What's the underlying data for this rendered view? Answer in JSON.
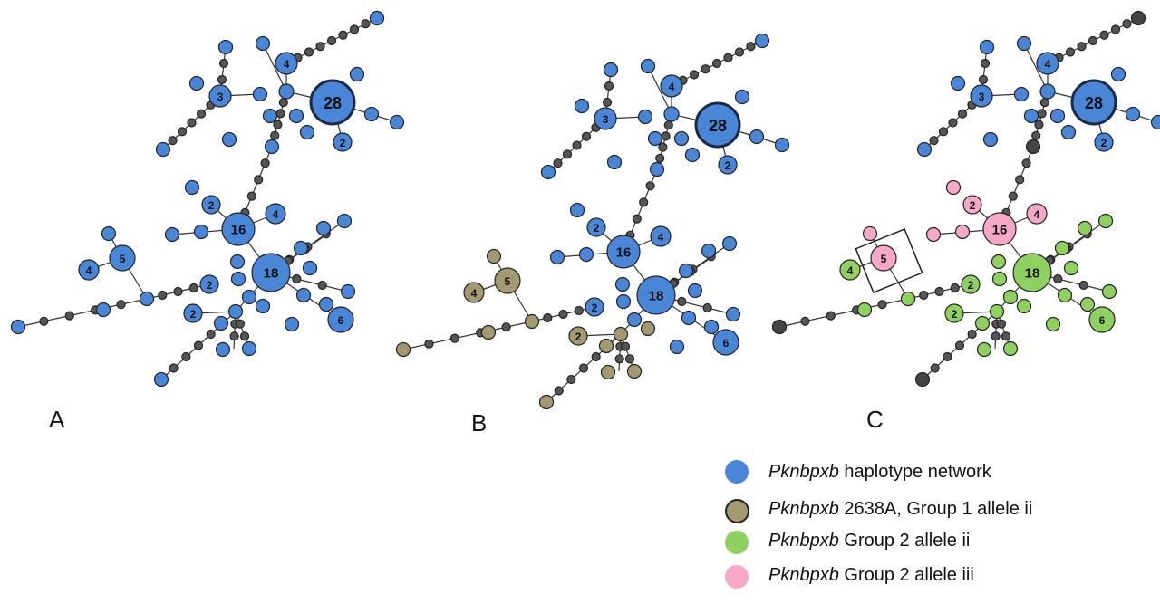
{
  "colors": {
    "blue": "#4a86d8",
    "olive": "#a39a72",
    "green": "#8fd160",
    "pink": "#f7a8c8",
    "median": "#555555",
    "dark_node": "#444444"
  },
  "panels": {
    "a": "A",
    "b": "B",
    "c": "C"
  },
  "node_counts": {
    "n28": "28",
    "n16": "16",
    "n18": "18",
    "n3": "3",
    "n4": "4",
    "n2": "2",
    "n5": "5",
    "n6": "6"
  },
  "legend": [
    {
      "italic": "Pknbpxb",
      "text": " haplotype network",
      "color": "#4a86d8"
    },
    {
      "italic": "Pknbpxb",
      "text": " 2638A, Group 1 allele ii",
      "color": "#a39a72"
    },
    {
      "italic": "Pknbpxb",
      "text": " Group 2 allele ii",
      "color": "#8fd160"
    },
    {
      "italic": "Pknbpxb",
      "text": " Group 2 allele iii",
      "color": "#f7a8c8"
    }
  ]
}
